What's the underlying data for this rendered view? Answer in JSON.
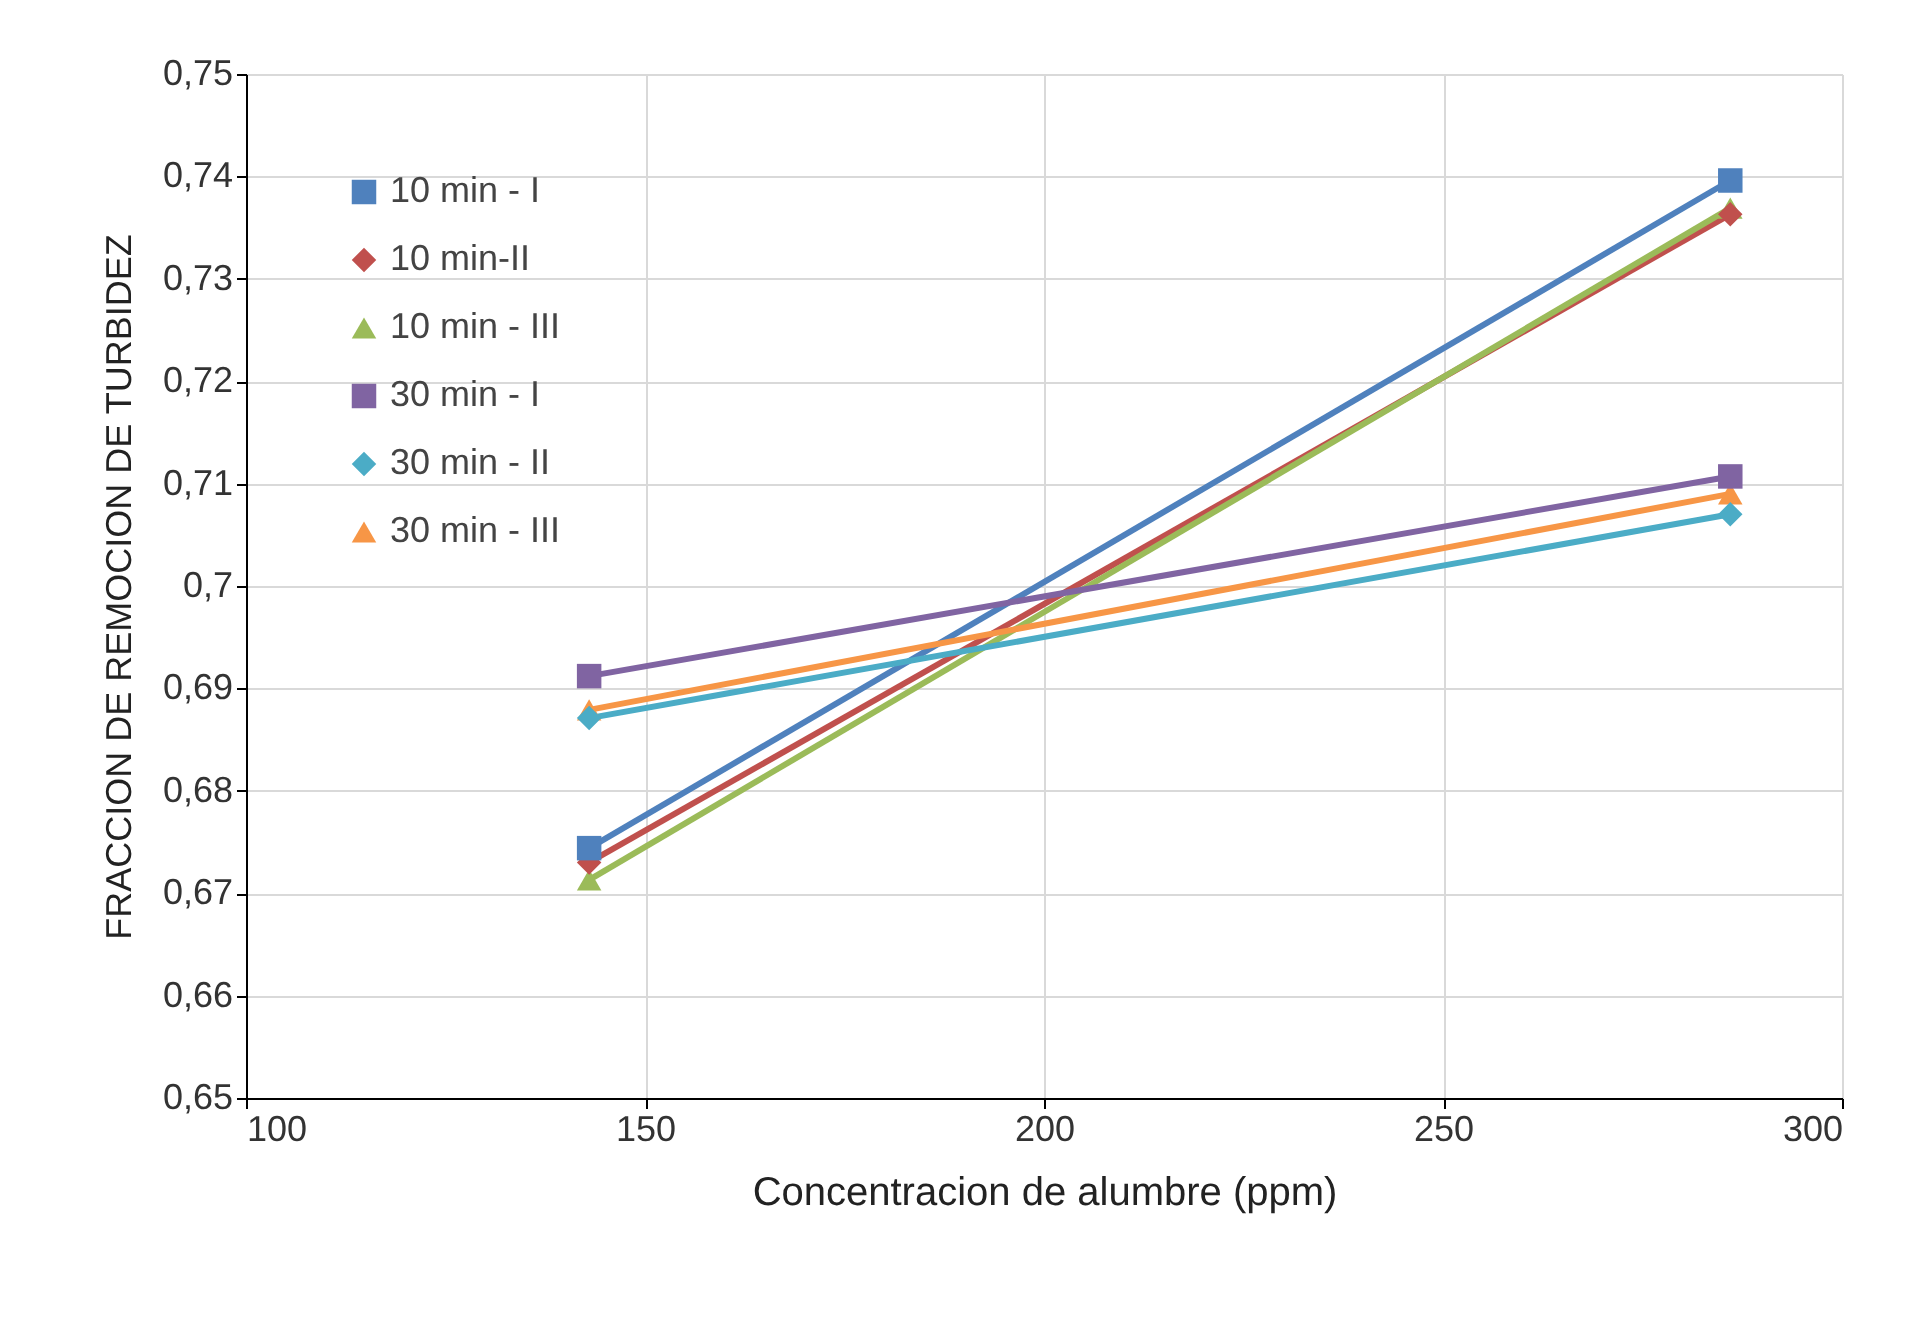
{
  "chart_data": {
    "type": "line",
    "xlabel": "Concentracion de alumbre (ppm)",
    "ylabel": "FRACCION DE REMOCION DE TURBIDEZ",
    "x": [
      143,
      286
    ],
    "xlim": [
      100,
      300
    ],
    "xticks": [
      100,
      150,
      200,
      250,
      300
    ],
    "ylim": [
      0.65,
      0.75
    ],
    "yticks": [
      {
        "value": 0.65,
        "label": "0,65"
      },
      {
        "value": 0.66,
        "label": "0,66"
      },
      {
        "value": 0.67,
        "label": "0,67"
      },
      {
        "value": 0.68,
        "label": "0,68"
      },
      {
        "value": 0.69,
        "label": "0,69"
      },
      {
        "value": 0.7,
        "label": "0,7"
      },
      {
        "value": 0.71,
        "label": "0,71"
      },
      {
        "value": 0.72,
        "label": "0,72"
      },
      {
        "value": 0.73,
        "label": "0,73"
      },
      {
        "value": 0.74,
        "label": "0,74"
      },
      {
        "value": 0.75,
        "label": "0,75"
      }
    ],
    "grid": true,
    "legend": "top left",
    "series": [
      {
        "name": "10 min - I",
        "color": "#4f81bd",
        "marker": "square",
        "values": [
          0.6744,
          0.7396
        ]
      },
      {
        "name": "10 min-II",
        "color": "#c0504d",
        "marker": "diamond",
        "values": [
          0.673,
          0.7363
        ]
      },
      {
        "name": "10 min - III",
        "color": "#9bbb59",
        "marker": "triangle",
        "values": [
          0.6713,
          0.7369
        ]
      },
      {
        "name": "30 min - I",
        "color": "#8064a2",
        "marker": "square",
        "values": [
          0.6912,
          0.7107
        ]
      },
      {
        "name": "30 min - II",
        "color": "#4bacc6",
        "marker": "diamond",
        "values": [
          0.6871,
          0.707
        ]
      },
      {
        "name": "30 min - III",
        "color": "#f79646",
        "marker": "triangle",
        "values": [
          0.6879,
          0.709
        ]
      }
    ]
  }
}
